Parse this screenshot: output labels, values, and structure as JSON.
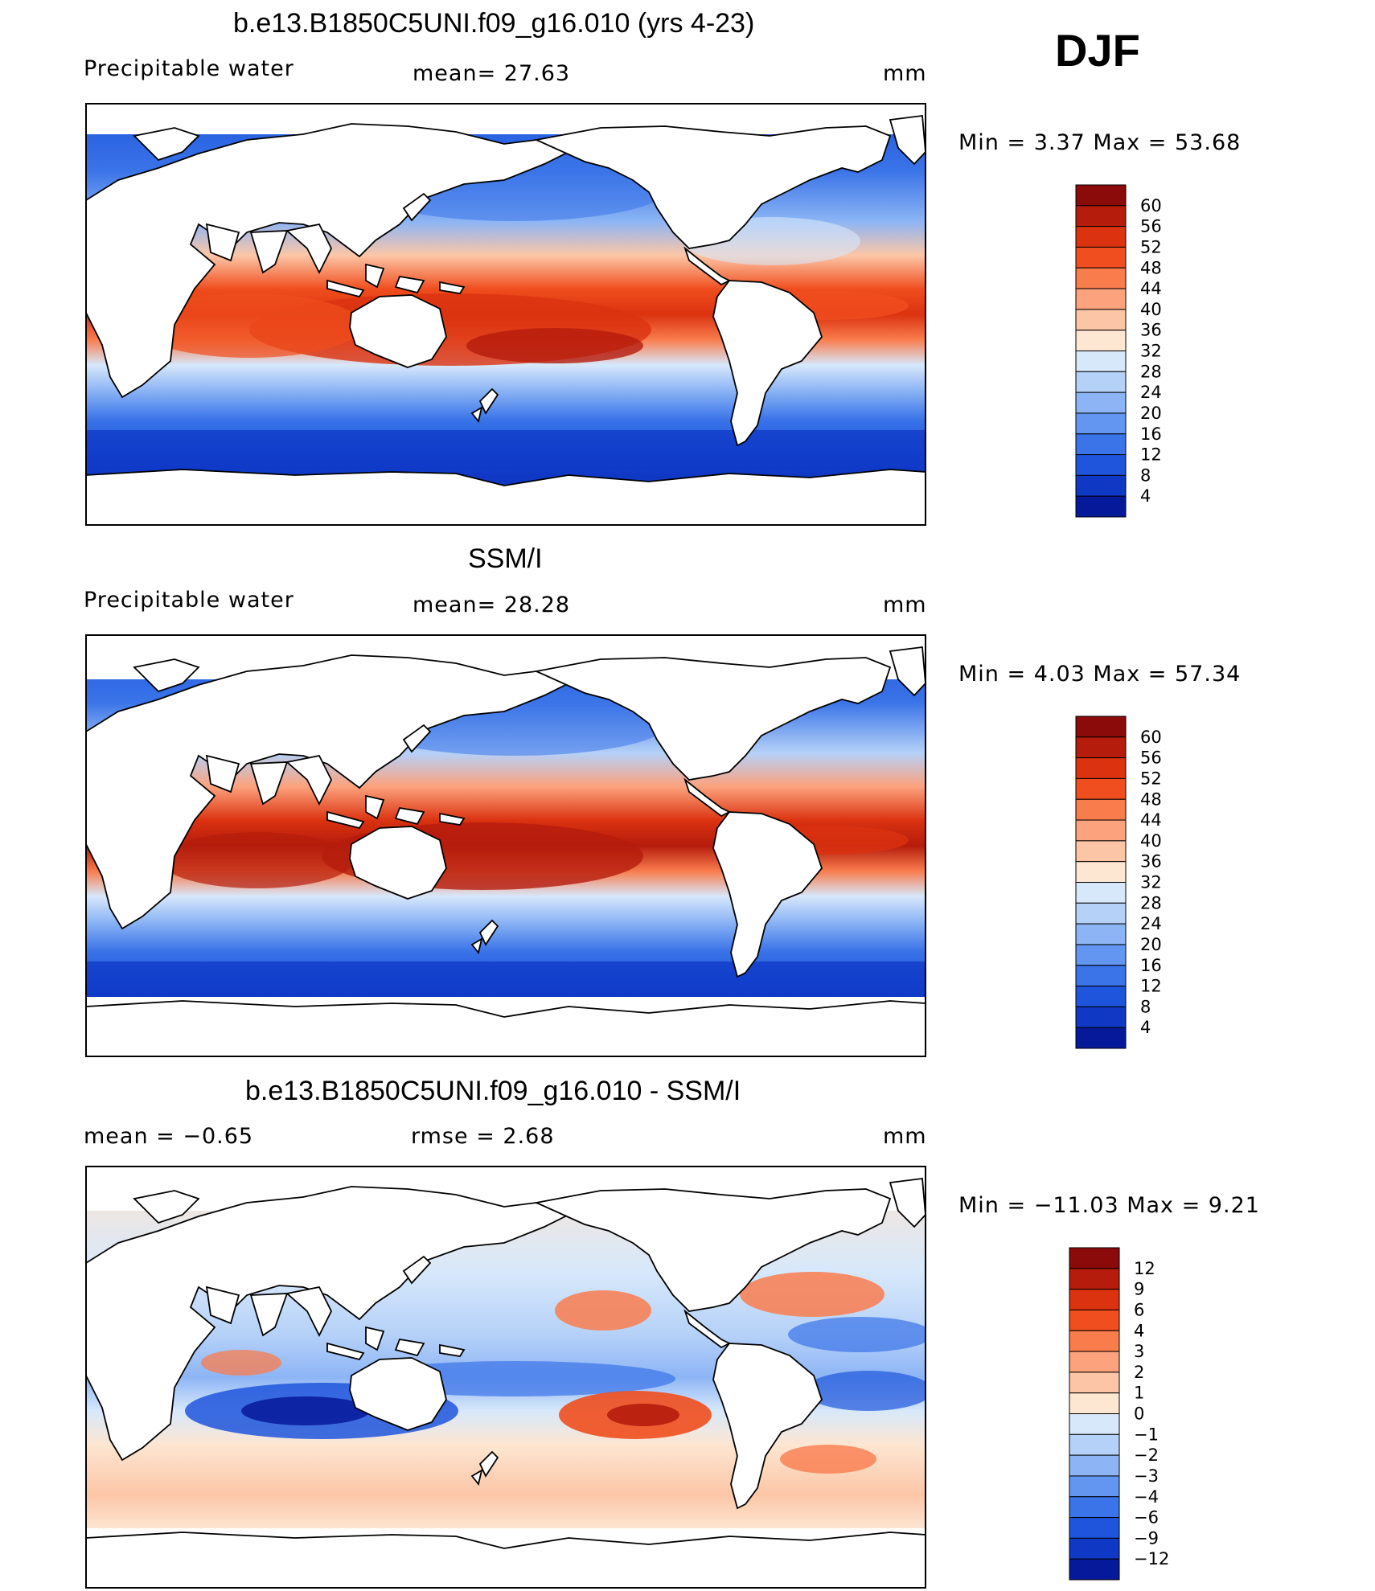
{
  "season": "DJF",
  "panels": [
    {
      "id": "model",
      "title": "b.e13.B1850C5UNI.f09_g16.010 (yrs 4-23)",
      "left_label": "Precipitable  water",
      "mid_label": "mean=   27.63",
      "units": "mm",
      "minmax": "Min  =     3.37  Max  =    53.68",
      "levels": [
        "60",
        "56",
        "52",
        "48",
        "44",
        "40",
        "36",
        "32",
        "28",
        "24",
        "20",
        "16",
        "12",
        "8",
        "4"
      ],
      "colors": [
        "#8b0a0a",
        "#b51c0c",
        "#db3210",
        "#f04e1e",
        "#f97c4d",
        "#fca27c",
        "#fcc6a6",
        "#fde6d2",
        "#d7e8fb",
        "#b5d1f8",
        "#8db5f5",
        "#6396f0",
        "#3a74e8",
        "#1e55dc",
        "#0f38c5",
        "#06199a"
      ]
    },
    {
      "id": "obs",
      "title": "SSM/I",
      "left_label": "Precipitable  water",
      "mid_label": "mean=   28.28",
      "units": "mm",
      "minmax": "Min  =     4.03  Max  =    57.34",
      "levels": [
        "60",
        "56",
        "52",
        "48",
        "44",
        "40",
        "36",
        "32",
        "28",
        "24",
        "20",
        "16",
        "12",
        "8",
        "4"
      ],
      "colors": [
        "#8b0a0a",
        "#b51c0c",
        "#db3210",
        "#f04e1e",
        "#f97c4d",
        "#fca27c",
        "#fcc6a6",
        "#fde6d2",
        "#d7e8fb",
        "#b5d1f8",
        "#8db5f5",
        "#6396f0",
        "#3a74e8",
        "#1e55dc",
        "#0f38c5",
        "#06199a"
      ]
    },
    {
      "id": "diff",
      "title": "b.e13.B1850C5UNI.f09_g16.010 - SSM/I",
      "left_label": "mean  =    −0.65",
      "mid_label": "rmse  =     2.68",
      "units": "mm",
      "minmax": "Min  = −11.03  Max  =      9.21",
      "levels": [
        "12",
        "9",
        "6",
        "4",
        "3",
        "2",
        "1",
        "0",
        "−1",
        "−2",
        "−3",
        "−4",
        "−6",
        "−9",
        "−12"
      ],
      "colors": [
        "#8b0a0a",
        "#b51c0c",
        "#db3210",
        "#f04e1e",
        "#f97c4d",
        "#fca27c",
        "#fcc6a6",
        "#fde6d2",
        "#d7e8fb",
        "#b5d1f8",
        "#8db5f5",
        "#6396f0",
        "#3a74e8",
        "#1e55dc",
        "#0f38c5",
        "#06199a"
      ]
    }
  ]
}
